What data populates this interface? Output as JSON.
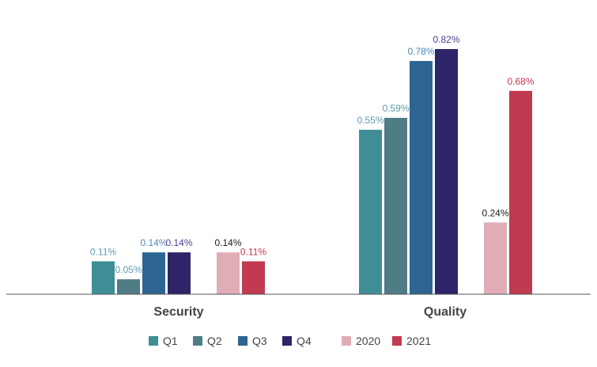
{
  "chart_data": {
    "type": "bar",
    "categories": [
      "Security",
      "Quality"
    ],
    "series": [
      {
        "name": "Q1",
        "group": "quarters",
        "values": [
          0.11,
          0.55
        ],
        "labels": [
          "0.11%",
          "0.55%"
        ],
        "color": "#3f8e96",
        "label_color": "#5b9bb0"
      },
      {
        "name": "Q2",
        "group": "quarters",
        "values": [
          0.05,
          0.59
        ],
        "labels": [
          "0.05%",
          "0.59%"
        ],
        "color": "#4f7c85",
        "label_color": "#5b9bb0"
      },
      {
        "name": "Q3",
        "group": "quarters",
        "values": [
          0.14,
          0.78
        ],
        "labels": [
          "0.14%",
          "0.78%"
        ],
        "color": "#2d6592",
        "label_color": "#4a87b8"
      },
      {
        "name": "Q4",
        "group": "quarters",
        "values": [
          0.14,
          0.82
        ],
        "labels": [
          "0.14%",
          "0.82%"
        ],
        "color": "#2d2568",
        "label_color": "#4a3f95"
      },
      {
        "name": "2020",
        "group": "years",
        "values": [
          0.14,
          0.24
        ],
        "labels": [
          "0.14%",
          "0.24%"
        ],
        "color": "#e0adb7",
        "label_color": "#1a1a1a"
      },
      {
        "name": "2021",
        "group": "years",
        "values": [
          0.11,
          0.68
        ],
        "labels": [
          "0.11%",
          "0.68%"
        ],
        "color": "#c13a50",
        "label_color": "#c13a50"
      }
    ],
    "ylim": [
      0,
      0.9
    ],
    "grid": false,
    "legend_position": "bottom",
    "axis_color": "#555555",
    "category_label_color": "#444444"
  }
}
